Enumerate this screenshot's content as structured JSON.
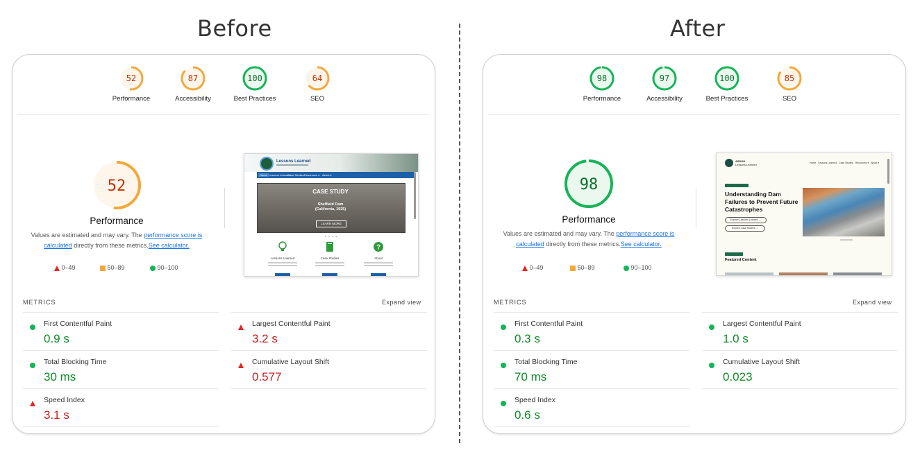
{
  "before": {
    "heading": "Before",
    "gauges": [
      {
        "score": "52",
        "label": "Performance",
        "color": "#f4a83a",
        "bg": "#fef5eb",
        "text": "#c33300",
        "fraction": 0.52
      },
      {
        "score": "87",
        "label": "Accessibility",
        "color": "#f4a83a",
        "bg": "#fef5eb",
        "text": "#c33300",
        "fraction": 0.87
      },
      {
        "score": "100",
        "label": "Best Practices",
        "color": "#16b458",
        "bg": "#eaf8ee",
        "text": "#0d6e2b",
        "fraction": 1.0
      },
      {
        "score": "64",
        "label": "SEO",
        "color": "#f4a83a",
        "bg": "#fef5eb",
        "text": "#c33300",
        "fraction": 0.64
      }
    ],
    "big": {
      "score": "52",
      "title": "Performance",
      "fraction": 0.52
    },
    "desc": {
      "pre": "Values are estimated and may vary. The ",
      "link1": "performance score is calculated",
      "mid": " directly from these metrics.",
      "link2": "See calculator."
    },
    "legend": [
      "0–49",
      "50–89",
      "90–100"
    ],
    "screenshot": {
      "site_title": "Lessons Learned",
      "nav": [
        "Home",
        "Lessons Learned",
        "Case Studies",
        "Resources ▾",
        "About ▾"
      ],
      "hero_title": "CASE STUDY",
      "hero_sub": "Sheffield Dam",
      "hero_sub2": "(California, 1925)",
      "hero_button": "LEARN MORE",
      "features": [
        "Lessons Learned",
        "Case Studies",
        "About"
      ]
    },
    "metrics_title": "METRICS",
    "expand": "Expand view",
    "metrics": [
      {
        "name": "First Contentful Paint",
        "value": "0.9 s",
        "status": "good"
      },
      {
        "name": "Largest Contentful Paint",
        "value": "3.2 s",
        "status": "poor"
      },
      {
        "name": "Total Blocking Time",
        "value": "30 ms",
        "status": "good"
      },
      {
        "name": "Cumulative Layout Shift",
        "value": "0.577",
        "status": "poor"
      },
      {
        "name": "Speed Index",
        "value": "3.1 s",
        "status": "poor"
      }
    ]
  },
  "after": {
    "heading": "After",
    "gauges": [
      {
        "score": "98",
        "label": "Performance",
        "color": "#16b458",
        "bg": "#eaf8ee",
        "text": "#0d6e2b",
        "fraction": 0.98
      },
      {
        "score": "97",
        "label": "Accessibility",
        "color": "#16b458",
        "bg": "#eaf8ee",
        "text": "#0d6e2b",
        "fraction": 0.97
      },
      {
        "score": "100",
        "label": "Best Practices",
        "color": "#16b458",
        "bg": "#eaf8ee",
        "text": "#0d6e2b",
        "fraction": 1.0
      },
      {
        "score": "85",
        "label": "SEO",
        "color": "#f4a83a",
        "bg": "#fef5eb",
        "text": "#c33300",
        "fraction": 0.85
      }
    ],
    "big": {
      "score": "98",
      "title": "Performance",
      "fraction": 0.98
    },
    "desc": {
      "pre": "Values are estimated and may vary. The ",
      "link1": "performance score is calculated",
      "mid": " directly from these metrics.",
      "link2": "See calculator."
    },
    "legend": [
      "0–49",
      "50–89",
      "90–100"
    ],
    "screenshot": {
      "brand": "ASDSO",
      "brand_sub": "Lessons Learned",
      "nav": [
        "Home",
        "Lessons Learned",
        "Case Studies",
        "Resources ▾",
        "About ▾"
      ],
      "hero_title": "Understanding Dam Failures to Prevent Future Catastrophes",
      "buttons": [
        "Explore Lessons Learned →",
        "Explore Case Studies →"
      ],
      "featured": "Featured Content"
    },
    "metrics_title": "METRICS",
    "expand": "Expand view",
    "metrics": [
      {
        "name": "First Contentful Paint",
        "value": "0.3 s",
        "status": "good"
      },
      {
        "name": "Largest Contentful Paint",
        "value": "1.0 s",
        "status": "good"
      },
      {
        "name": "Total Blocking Time",
        "value": "70 ms",
        "status": "good"
      },
      {
        "name": "Cumulative Layout Shift",
        "value": "0.023",
        "status": "good"
      },
      {
        "name": "Speed Index",
        "value": "0.6 s",
        "status": "good"
      }
    ]
  },
  "colors": {
    "poor": "#e52521",
    "average": "#f4a83a",
    "good": "#16b458"
  }
}
